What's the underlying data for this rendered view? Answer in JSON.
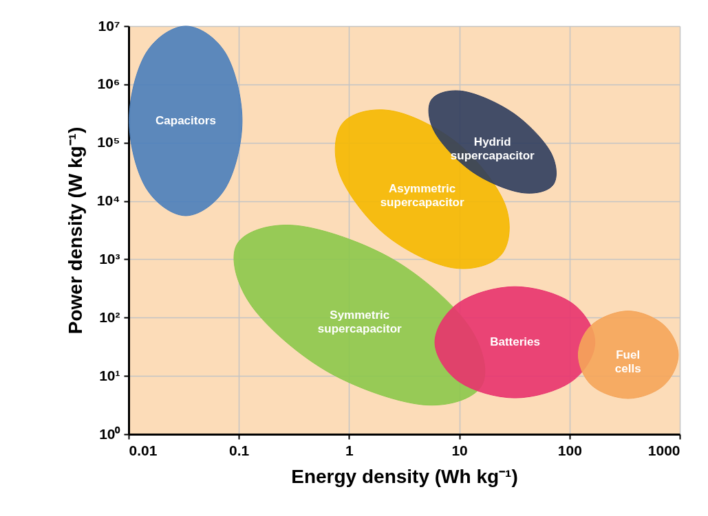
{
  "chart_data": {
    "type": "area",
    "xlabel": "Energy density (Wh kg⁻¹)",
    "ylabel": "Power density (W kg⁻¹)",
    "log": "xy",
    "grid": true,
    "marker": "none",
    "xlim": [
      0.01,
      1000
    ],
    "ylim": [
      1,
      10000000
    ],
    "xticks": [
      0.01,
      0.1,
      1,
      10,
      100,
      1000
    ],
    "yticks": [
      {
        "value": 1,
        "label": "10⁰"
      },
      {
        "value": 10,
        "label": "10¹"
      },
      {
        "value": 100,
        "label": "10²"
      },
      {
        "value": 1000,
        "label": "10³"
      },
      {
        "value": 10000,
        "label": "10⁴"
      },
      {
        "value": 100000,
        "label": "10⁵"
      },
      {
        "value": 1000000,
        "label": "10⁶"
      },
      {
        "value": 10000000,
        "label": "10⁷"
      }
    ],
    "series": [
      {
        "name": "Capacitors",
        "color": "#4a7ebb",
        "x": [
          0.107,
          0.076,
          0.033,
          0.0143,
          0.0101,
          0.0143,
          0.033,
          0.076
        ],
        "values": [
          240000,
          17000,
          5600,
          17000,
          240000,
          3400000,
          10000000,
          3400000
        ]
      },
      {
        "name": "Symmetric supercapacitor",
        "color": "#8cc84b",
        "x": [
          16,
          4.7,
          0.63,
          0.13,
          0.096,
          0.33,
          2.5,
          12
        ],
        "values": [
          6.9,
          3.2,
          12,
          160,
          1800,
          3800,
          1000,
          75
        ]
      },
      {
        "name": "Asymmetric supercapacitor",
        "color": "#f5b800",
        "x": [
          24,
          8.5,
          2.1,
          0.82,
          0.88,
          2.5,
          10,
          26
        ],
        "values": [
          1200,
          720,
          2700,
          29000,
          220000,
          350000,
          93000,
          8700
        ]
      },
      {
        "name": "Hydrid supercapacitor",
        "color": "#2f3d5e",
        "x": [
          71,
          36,
          13,
          6.0,
          5.6,
          11,
          31,
          67
        ],
        "values": [
          19000,
          14000,
          32000,
          150000,
          550000,
          760000,
          320000,
          70000
        ]
      },
      {
        "name": "Batteries",
        "color": "#e8336e",
        "x": [
          170,
          104,
          32,
          9.9,
          6.0,
          9.9,
          32,
          104
        ],
        "values": [
          38,
          8.0,
          4.2,
          8.0,
          38,
          180,
          340,
          180
        ]
      },
      {
        "name": "Fuel cells",
        "color": "#f5a55a",
        "x": [
          970,
          710,
          340,
          160,
          120,
          160,
          340,
          710
        ],
        "values": [
          23,
          6.8,
          4.1,
          6.8,
          23,
          76,
          130,
          76
        ]
      }
    ]
  }
}
